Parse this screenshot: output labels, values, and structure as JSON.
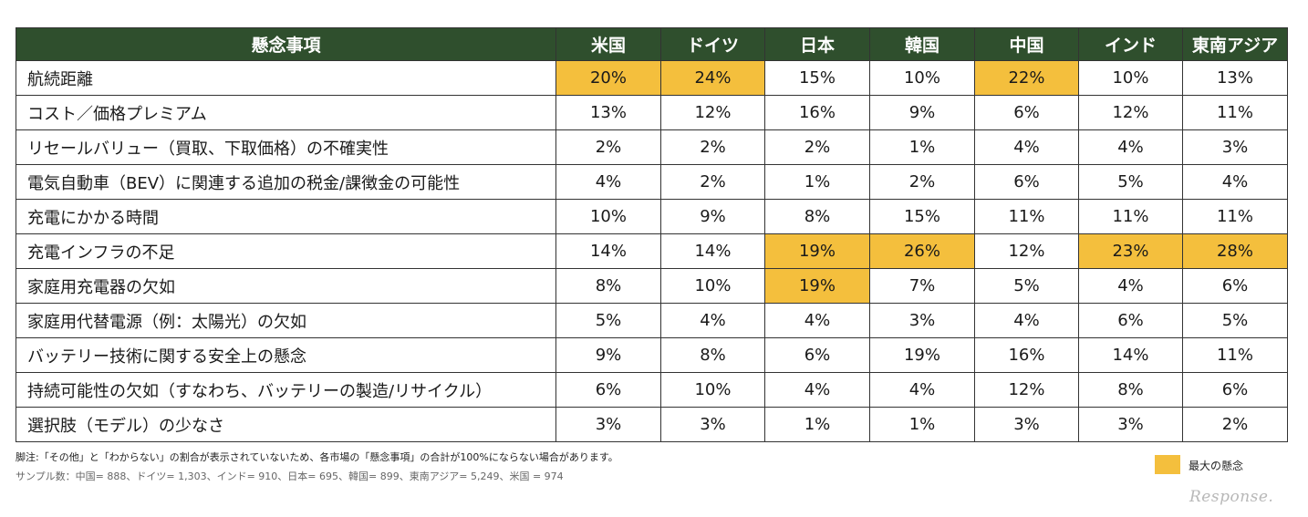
{
  "colors": {
    "header_bg": "#2f4f2d",
    "highlight": "#f4bf3d"
  },
  "chart_data": {
    "type": "table",
    "title": "",
    "header": {
      "concern": "懸念事項",
      "countries": [
        "米国",
        "ドイツ",
        "日本",
        "韓国",
        "中国",
        "インド",
        "東南アジア"
      ]
    },
    "rows": [
      {
        "label": "航続距離",
        "values": [
          "20%",
          "24%",
          "15%",
          "10%",
          "22%",
          "10%",
          "13%"
        ],
        "highlight": [
          true,
          true,
          false,
          false,
          true,
          false,
          false
        ]
      },
      {
        "label": "コスト／価格プレミアム",
        "values": [
          "13%",
          "12%",
          "16%",
          "9%",
          "6%",
          "12%",
          "11%"
        ],
        "highlight": [
          false,
          false,
          false,
          false,
          false,
          false,
          false
        ]
      },
      {
        "label": "リセールバリュー（買取、下取価格）の不確実性",
        "values": [
          "2%",
          "2%",
          "2%",
          "1%",
          "4%",
          "4%",
          "3%"
        ],
        "highlight": [
          false,
          false,
          false,
          false,
          false,
          false,
          false
        ]
      },
      {
        "label": "電気自動車（BEV）に関連する追加の税金/課徴金の可能性",
        "values": [
          "4%",
          "2%",
          "1%",
          "2%",
          "6%",
          "5%",
          "4%"
        ],
        "highlight": [
          false,
          false,
          false,
          false,
          false,
          false,
          false
        ]
      },
      {
        "label": "充電にかかる時間",
        "values": [
          "10%",
          "9%",
          "8%",
          "15%",
          "11%",
          "11%",
          "11%"
        ],
        "highlight": [
          false,
          false,
          false,
          false,
          false,
          false,
          false
        ]
      },
      {
        "label": "充電インフラの不足",
        "values": [
          "14%",
          "14%",
          "19%",
          "26%",
          "12%",
          "23%",
          "28%"
        ],
        "highlight": [
          false,
          false,
          true,
          true,
          false,
          true,
          true
        ]
      },
      {
        "label": "家庭用充電器の欠如",
        "values": [
          "8%",
          "10%",
          "19%",
          "7%",
          "5%",
          "4%",
          "6%"
        ],
        "highlight": [
          false,
          false,
          true,
          false,
          false,
          false,
          false
        ]
      },
      {
        "label": "家庭用代替電源（例：太陽光）の欠如",
        "values": [
          "5%",
          "4%",
          "4%",
          "3%",
          "4%",
          "6%",
          "5%"
        ],
        "highlight": [
          false,
          false,
          false,
          false,
          false,
          false,
          false
        ]
      },
      {
        "label": "バッテリー技術に関する安全上の懸念",
        "values": [
          "9%",
          "8%",
          "6%",
          "19%",
          "16%",
          "14%",
          "11%"
        ],
        "highlight": [
          false,
          false,
          false,
          false,
          false,
          false,
          false
        ]
      },
      {
        "label": "持続可能性の欠如（すなわち、バッテリーの製造/リサイクル）",
        "values": [
          "6%",
          "10%",
          "4%",
          "4%",
          "12%",
          "8%",
          "6%"
        ],
        "highlight": [
          false,
          false,
          false,
          false,
          false,
          false,
          false
        ]
      },
      {
        "label": "選択肢（モデル）の少なさ",
        "values": [
          "3%",
          "3%",
          "1%",
          "1%",
          "3%",
          "3%",
          "2%"
        ],
        "highlight": [
          false,
          false,
          false,
          false,
          false,
          false,
          false
        ]
      }
    ],
    "legend": "最大の懸念"
  },
  "notes": {
    "footnote": "脚注:「その他」と「わからない」の割合が表示されていないため、各市場の「懸念事項」の合計が100%にならない場合があります。",
    "sample": "サンプル数：中国= 888、ドイツ= 1,303、インド= 910、日本= 695、韓国= 899、東南アジア= 5,249、米国 = 974"
  },
  "watermark": "Response."
}
